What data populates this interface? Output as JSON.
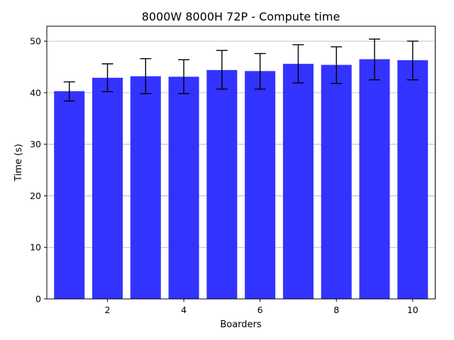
{
  "chart_data": {
    "type": "bar",
    "title": "8000W 8000H 72P - Compute time",
    "xlabel": "Boarders",
    "ylabel": "Time (s)",
    "x": [
      1,
      2,
      3,
      4,
      5,
      6,
      7,
      8,
      9,
      10
    ],
    "values": [
      40.3,
      42.9,
      43.2,
      43.1,
      44.4,
      44.2,
      45.6,
      45.4,
      46.5,
      46.3
    ],
    "error_low": [
      38.4,
      40.2,
      39.8,
      39.8,
      40.7,
      40.7,
      41.9,
      41.8,
      42.5,
      42.5
    ],
    "error_high": [
      42.1,
      45.6,
      46.6,
      46.4,
      48.2,
      47.6,
      49.3,
      48.9,
      50.4,
      50.0
    ],
    "xticks": [
      2,
      4,
      6,
      8,
      10
    ],
    "yticks": [
      0,
      10,
      20,
      30,
      40,
      50
    ],
    "xlim": [
      0.41,
      10.59
    ],
    "ylim": [
      0,
      52.9
    ],
    "grid": "y",
    "bar_color": "#3333ff",
    "error_color": "#000000",
    "grid_color": "#b0b0b0"
  }
}
